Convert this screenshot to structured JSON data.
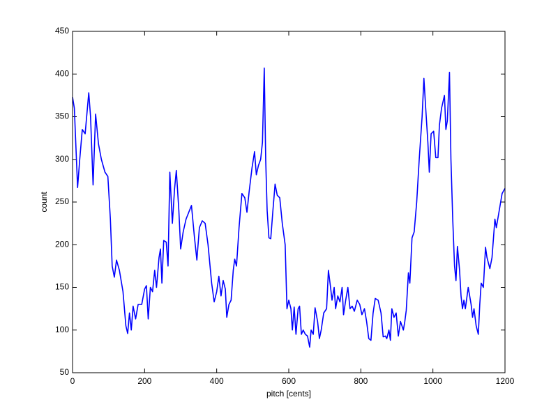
{
  "chart_data": {
    "type": "line",
    "xlabel": "pitch [cents]",
    "ylabel": "count",
    "xlim": [
      0,
      1200
    ],
    "ylim": [
      50,
      450
    ],
    "xticks": [
      0,
      200,
      400,
      600,
      800,
      1000,
      1200
    ],
    "yticks": [
      50,
      100,
      150,
      200,
      250,
      300,
      350,
      400,
      450
    ],
    "grid": false,
    "x": [
      0,
      5,
      14,
      20,
      27,
      35,
      45,
      50,
      57,
      64,
      72,
      80,
      90,
      98,
      105,
      110,
      116,
      122,
      130,
      140,
      148,
      153,
      158,
      163,
      168,
      175,
      182,
      192,
      200,
      205,
      210,
      216,
      222,
      228,
      233,
      240,
      244,
      248,
      253,
      260,
      265,
      270,
      277,
      283,
      288,
      295,
      300,
      307,
      315,
      330,
      338,
      345,
      352,
      360,
      368,
      376,
      386,
      393,
      400,
      406,
      412,
      418,
      424,
      428,
      434,
      440,
      446,
      450,
      455,
      462,
      470,
      478,
      484,
      490,
      498,
      505,
      510,
      516,
      522,
      527,
      532,
      536,
      540,
      545,
      550,
      556,
      562,
      568,
      575,
      582,
      590,
      595,
      600,
      606,
      610,
      615,
      620,
      626,
      630,
      635,
      640,
      646,
      652,
      658,
      662,
      668,
      673,
      680,
      685,
      690,
      697,
      705,
      710,
      716,
      720,
      726,
      730,
      736,
      742,
      748,
      752,
      758,
      764,
      770,
      776,
      782,
      790,
      797,
      803,
      810,
      816,
      822,
      828,
      834,
      840,
      848,
      856,
      862,
      868,
      872,
      878,
      882,
      886,
      892,
      898,
      904,
      910,
      918,
      922,
      926,
      932,
      936,
      942,
      948,
      955,
      962,
      970,
      975,
      980,
      986,
      990,
      995,
      1002,
      1008,
      1014,
      1018,
      1024,
      1032,
      1036,
      1040,
      1046,
      1050,
      1055,
      1060,
      1064,
      1068,
      1074,
      1078,
      1082,
      1086,
      1090,
      1098,
      1106,
      1110,
      1114,
      1120,
      1126,
      1130,
      1134,
      1140,
      1146,
      1150,
      1158,
      1164,
      1172,
      1176,
      1184,
      1192,
      1200
    ],
    "series": [
      {
        "color": "#0000ff",
        "values": [
          373,
          360,
          267,
          300,
          335,
          330,
          378,
          350,
          270,
          353,
          318,
          300,
          285,
          280,
          230,
          175,
          162,
          182,
          170,
          145,
          105,
          96,
          120,
          100,
          128,
          113,
          130,
          130,
          148,
          152,
          113,
          150,
          145,
          170,
          150,
          185,
          195,
          155,
          205,
          203,
          175,
          285,
          225,
          265,
          287,
          240,
          195,
          215,
          230,
          246,
          210,
          182,
          220,
          228,
          225,
          200,
          155,
          133,
          145,
          163,
          140,
          158,
          148,
          115,
          130,
          135,
          170,
          183,
          175,
          220,
          260,
          255,
          238,
          262,
          290,
          309,
          282,
          293,
          300,
          320,
          407,
          300,
          240,
          208,
          207,
          240,
          271,
          258,
          255,
          225,
          200,
          125,
          135,
          125,
          100,
          127,
          95,
          125,
          128,
          95,
          100,
          95,
          93,
          80,
          100,
          95,
          126,
          110,
          90,
          100,
          120,
          125,
          170,
          150,
          135,
          150,
          125,
          140,
          133,
          150,
          118,
          135,
          150,
          125,
          128,
          122,
          135,
          130,
          118,
          125,
          110,
          90,
          88,
          120,
          137,
          135,
          120,
          92,
          93,
          90,
          100,
          88,
          125,
          115,
          120,
          93,
          110,
          100,
          110,
          123,
          167,
          155,
          208,
          215,
          250,
          300,
          350,
          395,
          360,
          320,
          285,
          330,
          333,
          302,
          302,
          340,
          360,
          375,
          335,
          345,
          402,
          300,
          230,
          175,
          158,
          198,
          170,
          140,
          125,
          135,
          125,
          150,
          130,
          115,
          125,
          105,
          95,
          130,
          155,
          150,
          197,
          185,
          172,
          185,
          230,
          220,
          240,
          260,
          266
        ]
      }
    ]
  }
}
